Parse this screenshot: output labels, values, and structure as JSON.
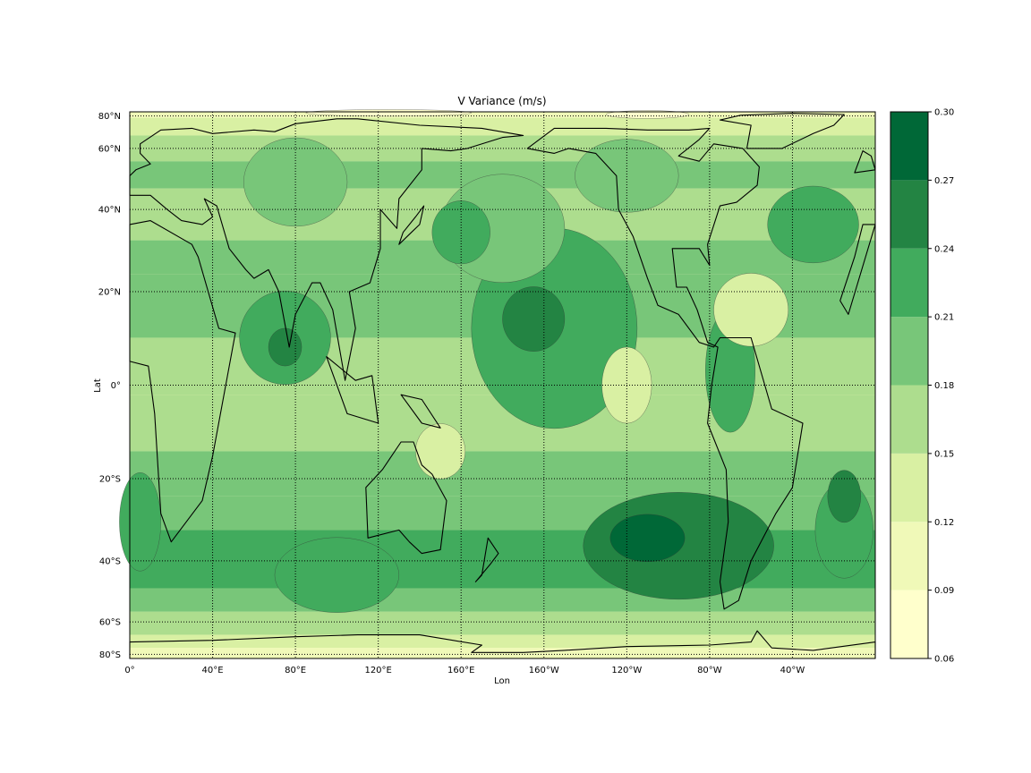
{
  "map": {
    "title": "V Variance (m/s)",
    "xlabel": "Lon",
    "ylabel": "Lat",
    "projection": "cylindrical-equal-area",
    "grid": "dotted",
    "lon_ticks": [
      {
        "value": 0,
        "label": "0°"
      },
      {
        "value": 40,
        "label": "40°E"
      },
      {
        "value": 80,
        "label": "80°E"
      },
      {
        "value": 120,
        "label": "120°E"
      },
      {
        "value": 160,
        "label": "160°E"
      },
      {
        "value": 200,
        "label": "160°W"
      },
      {
        "value": 240,
        "label": "120°W"
      },
      {
        "value": 280,
        "label": "80°W"
      },
      {
        "value": 320,
        "label": "40°W"
      }
    ],
    "lat_ticks": [
      {
        "value": 80,
        "label": "80°N"
      },
      {
        "value": 60,
        "label": "60°N"
      },
      {
        "value": 40,
        "label": "40°N"
      },
      {
        "value": 20,
        "label": "20°N"
      },
      {
        "value": 0,
        "label": "0°"
      },
      {
        "value": -20,
        "label": "20°S"
      },
      {
        "value": -40,
        "label": "40°S"
      },
      {
        "value": -60,
        "label": "60°S"
      },
      {
        "value": -80,
        "label": "80°S"
      }
    ],
    "lon_range": [
      0,
      360
    ],
    "lat_range": [
      -90,
      90
    ]
  },
  "colorbar": {
    "position": "right",
    "levels": [
      0.06,
      0.09,
      0.12,
      0.15,
      0.18,
      0.21,
      0.24,
      0.27,
      0.3
    ],
    "tick_labels": [
      "0.06",
      "0.09",
      "0.12",
      "0.15",
      "0.18",
      "0.21",
      "0.24",
      "0.27",
      "0.30"
    ],
    "colors": [
      "#ffffcc",
      "#f0f9b8",
      "#d9f0a3",
      "#addd8e",
      "#78c679",
      "#41ab5d",
      "#238443",
      "#006837"
    ]
  }
}
